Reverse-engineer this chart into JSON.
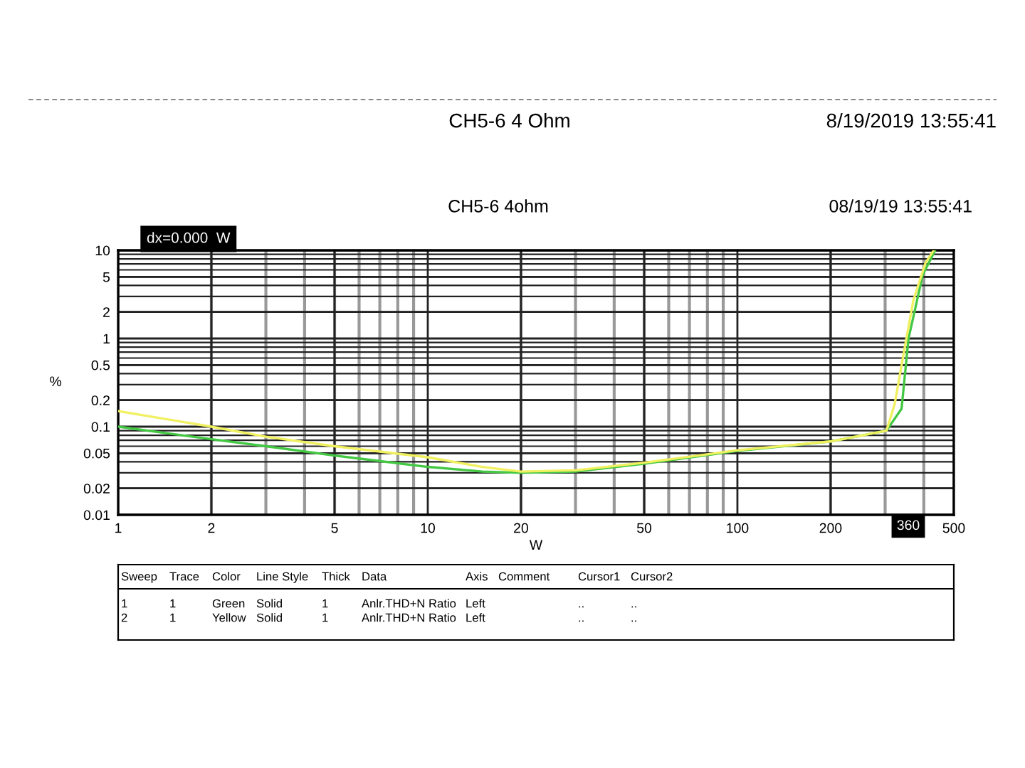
{
  "chart_data": {
    "type": "line",
    "xlabel": "W",
    "ylabel": "%",
    "log": "xy",
    "grid": true,
    "line_style": "solid",
    "marker": "none",
    "xlim": [
      1,
      500
    ],
    "ylim": [
      0.01,
      10
    ],
    "xticks": [
      1,
      2,
      5,
      10,
      20,
      50,
      100,
      200,
      500
    ],
    "yticks": [
      0.01,
      0.02,
      0.05,
      0.1,
      0.2,
      0.5,
      1,
      2,
      5,
      10
    ],
    "series": [
      {
        "color": "#44c844",
        "x": [
          1,
          2,
          3,
          5,
          10,
          15,
          20,
          30,
          50,
          100,
          200,
          303,
          339,
          357,
          397,
          434
        ],
        "values": [
          0.1,
          0.072,
          0.06,
          0.047,
          0.035,
          0.031,
          0.03,
          0.031,
          0.038,
          0.053,
          0.068,
          0.09,
          0.16,
          1.0,
          5.3,
          9.8
        ]
      },
      {
        "color": "#f0f060",
        "x": [
          1,
          2,
          3,
          5,
          10,
          15,
          20,
          30,
          50,
          100,
          200,
          303,
          322,
          345,
          370,
          405,
          429
        ],
        "values": [
          0.15,
          0.1,
          0.077,
          0.06,
          0.045,
          0.035,
          0.031,
          0.032,
          0.039,
          0.054,
          0.068,
          0.09,
          0.18,
          0.7,
          2.7,
          7.2,
          9.8
        ]
      }
    ],
    "annotations": [
      "CH5-6 4 Ohm",
      "8/19/2019 13:55:41",
      "CH5-6 4ohm",
      "08/19/19 13:55:41",
      "dx=0.000  W",
      "360",
      "Sweep\tTrace\tColor\tLine Style\tThick\tData\tAxis\tComment\tCursor1\tCursor2",
      "1\t1\tGreen\tSolid\t1\tAnlr.THD+N Ratio\tLeft\t\t..\t..",
      "2\t1\tYellow\tSolid\t1\tAnlr.THD+N Ratio\tLeft\t\t..\t.."
    ]
  }
}
